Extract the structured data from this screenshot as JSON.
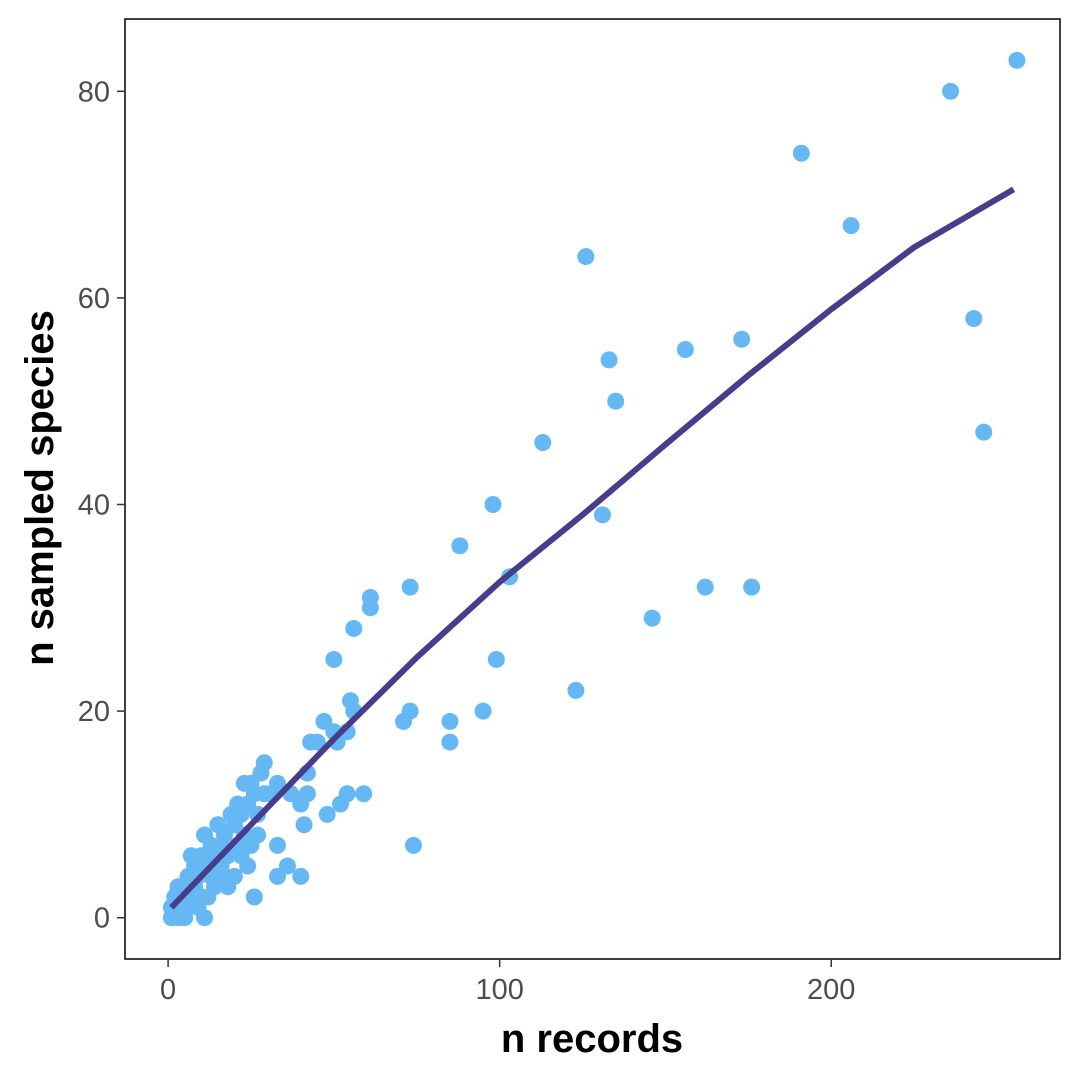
{
  "chart_data": {
    "type": "scatter",
    "title": "",
    "xlabel": "n records",
    "ylabel": "n sampled species",
    "xlim": [
      -13,
      269
    ],
    "ylim": [
      -4,
      87
    ],
    "xticks": [
      0,
      100,
      200
    ],
    "yticks": [
      0,
      20,
      40,
      60,
      80
    ],
    "grid": false,
    "legend": "none",
    "point_color": "#66b8f5",
    "line_color": "#483d8b",
    "series": [
      {
        "type": "scatter",
        "points": [
          [
            1,
            0
          ],
          [
            1,
            1
          ],
          [
            2,
            2
          ],
          [
            3,
            0
          ],
          [
            3,
            3
          ],
          [
            4,
            1
          ],
          [
            4,
            2
          ],
          [
            5,
            0
          ],
          [
            5,
            3
          ],
          [
            6,
            1
          ],
          [
            6,
            4
          ],
          [
            7,
            2
          ],
          [
            7,
            6
          ],
          [
            8,
            3
          ],
          [
            8,
            5
          ],
          [
            9,
            1
          ],
          [
            9,
            4
          ],
          [
            10,
            2
          ],
          [
            10,
            6
          ],
          [
            11,
            0
          ],
          [
            11,
            8
          ],
          [
            12,
            2
          ],
          [
            12,
            5
          ],
          [
            13,
            4
          ],
          [
            13,
            7
          ],
          [
            14,
            3
          ],
          [
            14,
            6
          ],
          [
            15,
            9
          ],
          [
            16,
            5
          ],
          [
            16,
            7
          ],
          [
            17,
            4
          ],
          [
            17,
            8
          ],
          [
            18,
            3
          ],
          [
            18,
            6
          ],
          [
            19,
            10
          ],
          [
            20,
            4
          ],
          [
            20,
            9
          ],
          [
            21,
            7
          ],
          [
            21,
            11
          ],
          [
            22,
            6
          ],
          [
            22,
            10
          ],
          [
            23,
            8
          ],
          [
            23,
            13
          ],
          [
            24,
            5
          ],
          [
            24,
            11
          ],
          [
            25,
            7
          ],
          [
            25,
            13
          ],
          [
            26,
            2
          ],
          [
            26,
            12
          ],
          [
            27,
            8
          ],
          [
            27,
            10
          ],
          [
            28,
            14
          ],
          [
            29,
            12
          ],
          [
            29,
            15
          ],
          [
            31,
            12
          ],
          [
            33,
            4
          ],
          [
            33,
            7
          ],
          [
            33,
            13
          ],
          [
            36,
            5
          ],
          [
            37,
            12
          ],
          [
            40,
            4
          ],
          [
            40,
            11
          ],
          [
            41,
            9
          ],
          [
            42,
            12
          ],
          [
            42,
            14
          ],
          [
            43,
            17
          ],
          [
            45,
            17
          ],
          [
            47,
            19
          ],
          [
            48,
            10
          ],
          [
            50,
            18
          ],
          [
            50,
            25
          ],
          [
            51,
            17
          ],
          [
            52,
            11
          ],
          [
            54,
            12
          ],
          [
            54,
            18
          ],
          [
            55,
            21
          ],
          [
            56,
            20
          ],
          [
            56,
            28
          ],
          [
            59,
            12
          ],
          [
            61,
            30
          ],
          [
            61,
            31
          ],
          [
            71,
            19
          ],
          [
            73,
            20
          ],
          [
            73,
            32
          ],
          [
            74,
            7
          ],
          [
            85,
            17
          ],
          [
            85,
            19
          ],
          [
            88,
            36
          ],
          [
            95,
            20
          ],
          [
            98,
            40
          ],
          [
            99,
            25
          ],
          [
            103,
            33
          ],
          [
            113,
            46
          ],
          [
            123,
            22
          ],
          [
            126,
            64
          ],
          [
            131,
            39
          ],
          [
            133,
            54
          ],
          [
            135,
            50
          ],
          [
            146,
            29
          ],
          [
            156,
            55
          ],
          [
            162,
            32
          ],
          [
            173,
            56
          ],
          [
            176,
            32
          ],
          [
            191,
            74
          ],
          [
            206,
            67
          ],
          [
            236,
            80
          ],
          [
            243,
            58
          ],
          [
            246,
            47
          ],
          [
            256,
            83
          ]
        ]
      },
      {
        "type": "line",
        "points": [
          [
            1,
            1
          ],
          [
            25,
            9
          ],
          [
            50,
            17.3
          ],
          [
            75,
            25.2
          ],
          [
            100,
            32.5
          ],
          [
            125,
            39
          ],
          [
            150,
            45.8
          ],
          [
            175,
            52.5
          ],
          [
            200,
            58.9
          ],
          [
            225,
            64.9
          ],
          [
            255,
            70.5
          ]
        ]
      }
    ]
  }
}
